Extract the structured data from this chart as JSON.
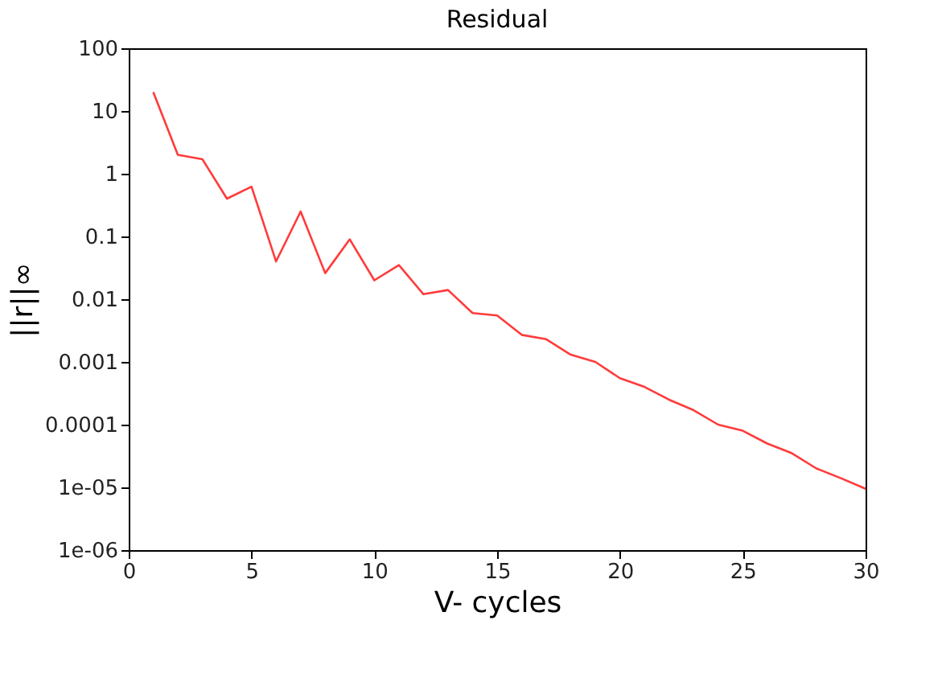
{
  "chart_data": {
    "type": "line",
    "title": "Residual",
    "xlabel": "V- cycles",
    "ylabel": "||r||∞",
    "log": "y",
    "grid": false,
    "marker": "none",
    "line_style": "solid",
    "x": [
      1,
      2,
      3,
      4,
      5,
      6,
      7,
      8,
      9,
      10,
      11,
      12,
      13,
      14,
      15,
      16,
      17,
      18,
      19,
      20,
      21,
      22,
      23,
      24,
      25,
      26,
      27,
      28,
      29,
      30
    ],
    "series": [
      {
        "color": "#ff3b3b",
        "values": [
          20,
          2,
          1.7,
          0.4,
          0.62,
          0.04,
          0.25,
          0.026,
          0.09,
          0.02,
          0.035,
          0.012,
          0.014,
          0.006,
          0.0055,
          0.0027,
          0.0023,
          0.0013,
          0.001,
          0.00055,
          0.0004,
          0.00025,
          0.00017,
          0.0001,
          8e-05,
          5e-05,
          3.5e-05,
          2e-05,
          1.4e-05,
          9.5e-06
        ]
      }
    ],
    "xlim": [
      0,
      30
    ],
    "xticks": [
      0,
      5,
      10,
      15,
      20,
      25,
      30
    ],
    "ylim": [
      1e-06,
      100
    ],
    "yticks": [
      100,
      10,
      1,
      0.1,
      0.01,
      0.001,
      0.0001,
      {
        "value": 1e-05,
        "label": "1e-05"
      },
      {
        "value": 1e-06,
        "label": "1e-06"
      }
    ]
  }
}
